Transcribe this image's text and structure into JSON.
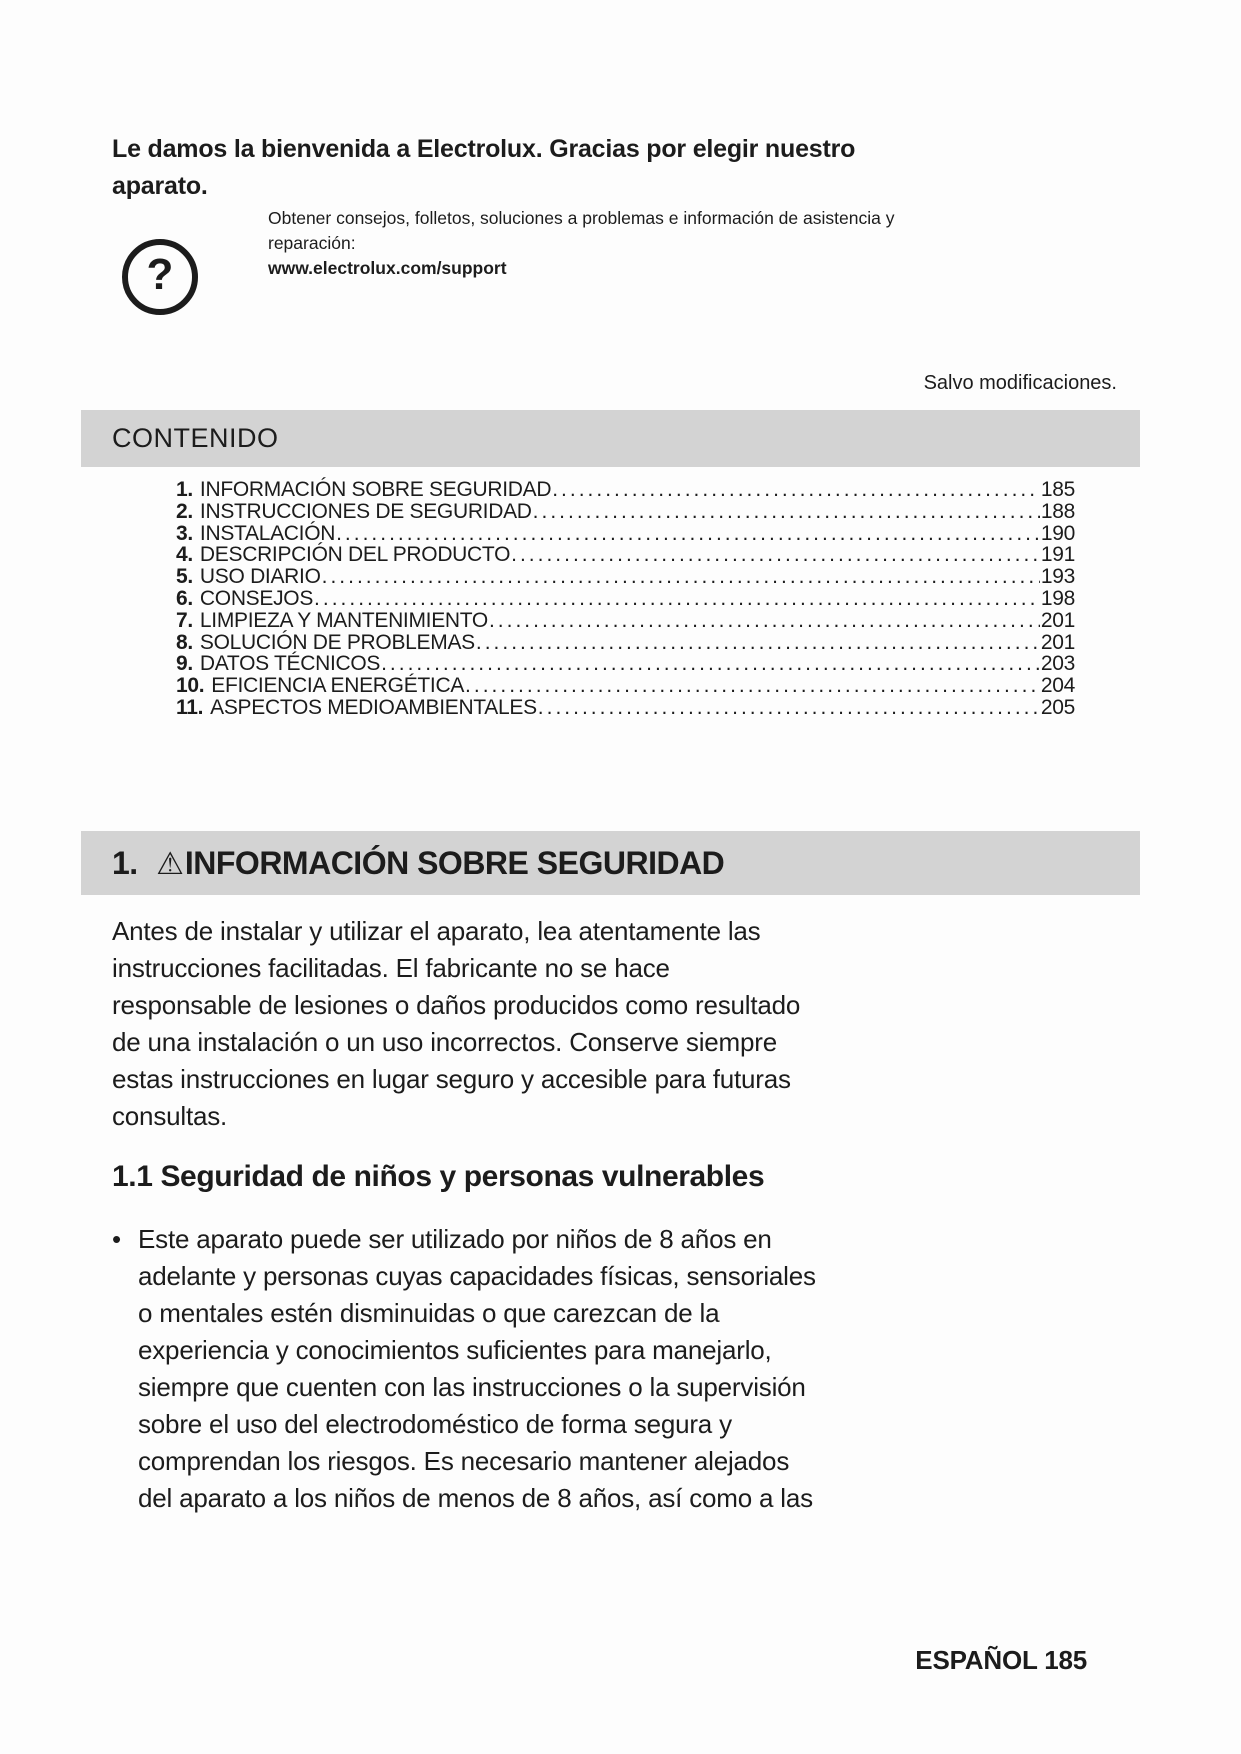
{
  "welcome": {
    "heading_lines": [
      "Le damos la bienvenida a Electrolux. Gracias por elegir nuestro",
      "aparato."
    ],
    "help_icon_glyph": "?",
    "support_lines": [
      "Obtener consejos, folletos, soluciones a problemas e información de asistencia y",
      "reparación:"
    ],
    "support_url": "www.electrolux.com/support",
    "modifications_note": "Salvo modificaciones."
  },
  "toc": {
    "header": "CONTENIDO",
    "items": [
      {
        "num": "1.",
        "title": "INFORMACIÓN SOBRE SEGURIDAD",
        "page": "185"
      },
      {
        "num": "2.",
        "title": "INSTRUCCIONES DE SEGURIDAD",
        "page": "188"
      },
      {
        "num": "3.",
        "title": "INSTALACIÓN",
        "page": "190"
      },
      {
        "num": "4.",
        "title": "DESCRIPCIÓN DEL PRODUCTO",
        "page": "191"
      },
      {
        "num": "5.",
        "title": "USO DIARIO",
        "page": "193"
      },
      {
        "num": "6.",
        "title": "CONSEJOS",
        "page": "198"
      },
      {
        "num": "7.",
        "title": "LIMPIEZA Y MANTENIMIENTO",
        "page": "201"
      },
      {
        "num": "8.",
        "title": "SOLUCIÓN DE PROBLEMAS",
        "page": "201"
      },
      {
        "num": "9.",
        "title": "DATOS TÉCNICOS",
        "page": "203"
      },
      {
        "num": "10.",
        "title": "EFICIENCIA ENERGÉTICA",
        "page": "204"
      },
      {
        "num": "11.",
        "title": "ASPECTOS MEDIOAMBIENTALES",
        "page": "205"
      }
    ]
  },
  "section1": {
    "number": "1. ",
    "warning_icon": "⚠",
    "title": "INFORMACIÓN SOBRE SEGURIDAD",
    "intro_lines": [
      "Antes de instalar y utilizar el aparato, lea atentamente las",
      "instrucciones facilitadas. El fabricante no se hace",
      "responsable de lesiones o daños producidos como resultado",
      "de una instalación o un uso incorrectos. Conserve siempre",
      "estas instrucciones en lugar seguro y accesible para futuras",
      "consultas."
    ]
  },
  "section1_1": {
    "title": "1.1 Seguridad de niños y personas vulnerables",
    "bullet_marker": "•",
    "bullet_lines": [
      "Este aparato puede ser utilizado por niños de 8 años en",
      "adelante y personas cuyas capacidades físicas, sensoriales",
      "o mentales estén disminuidas o que carezcan de la",
      "experiencia y conocimientos suficientes para manejarlo,",
      "siempre que cuenten con las instrucciones o la supervisión",
      "sobre el uso del electrodoméstico de forma segura y",
      "comprendan los riesgos. Es necesario mantener alejados",
      "del aparato a los niños de menos de 8 años, así como a las"
    ]
  },
  "footer": {
    "text": "ESPAÑOL 185"
  }
}
